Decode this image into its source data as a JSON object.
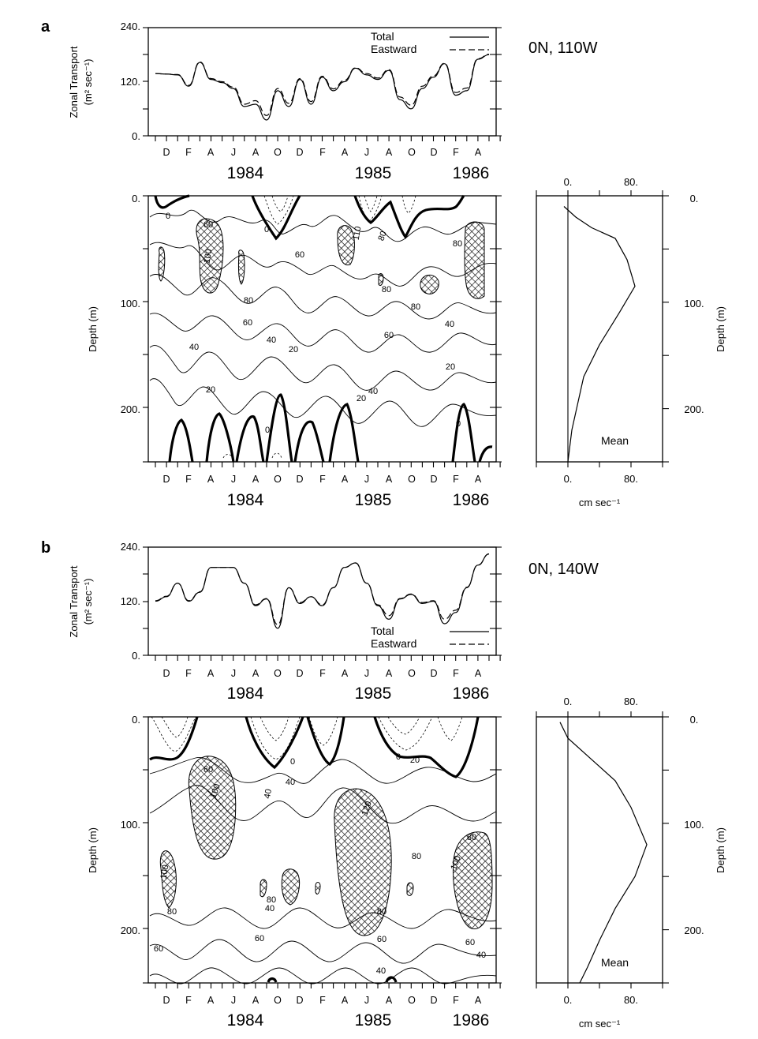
{
  "panels": [
    {
      "id": "a",
      "label": "a",
      "station": "0N, 110W",
      "transport": {
        "ylabel_line1": "Zonal Transport",
        "ylabel_line2": "(m² sec⁻¹)",
        "yticks": [
          "240.",
          "120.",
          "0."
        ],
        "ylim": [
          0,
          240
        ],
        "legend": {
          "position": "top-right",
          "total": "Total",
          "eastward": "Eastward"
        }
      },
      "section": {
        "ylabel": "Depth (m)",
        "yticks": [
          "0.",
          "100.",
          "200."
        ],
        "ylim": [
          0,
          250
        ],
        "contour_labels": [
          "0",
          "0",
          "0",
          "0",
          "20",
          "20",
          "20",
          "20",
          "40",
          "40",
          "40",
          "40",
          "60",
          "60",
          "60",
          "60",
          "80",
          "80",
          "80",
          "80",
          "100",
          "110",
          "80"
        ],
        "shading": "cross-hatched where speed exceeds 100 cm sec⁻¹; dotted contours are westward flow"
      },
      "mean": {
        "ylabel": "Depth (m)",
        "yticks": [
          "0.",
          "100.",
          "200."
        ],
        "xticks": [
          "0.",
          "80."
        ],
        "xlabel": "cm sec⁻¹",
        "label": "Mean"
      },
      "time_axis": {
        "months": [
          "D",
          "F",
          "A",
          "J",
          "A",
          "O",
          "D",
          "F",
          "A",
          "J",
          "A",
          "O",
          "D",
          "F",
          "A"
        ],
        "years": [
          "1984",
          "1985",
          "1986"
        ]
      }
    },
    {
      "id": "b",
      "label": "b",
      "station": "0N, 140W",
      "transport": {
        "ylabel_line1": "Zonal Transport",
        "ylabel_line2": "(m² sec⁻¹)",
        "yticks": [
          "240.",
          "120.",
          "0."
        ],
        "ylim": [
          0,
          240
        ],
        "legend": {
          "position": "bottom-right",
          "total": "Total",
          "eastward": "Eastward"
        }
      },
      "section": {
        "ylabel": "Depth (m)",
        "yticks": [
          "0.",
          "100.",
          "200."
        ],
        "ylim": [
          0,
          250
        ],
        "contour_labels": [
          "0",
          "0",
          "20",
          "40",
          "40",
          "40",
          "40",
          "60",
          "60",
          "60",
          "60",
          "60",
          "80",
          "80",
          "80",
          "80",
          "80",
          "100",
          "100",
          "100",
          "120",
          "40"
        ],
        "shading": "cross-hatched where speed exceeds 100 cm sec⁻¹; dotted contours are westward flow"
      },
      "mean": {
        "ylabel": "Depth (m)",
        "yticks": [
          "0.",
          "100.",
          "200."
        ],
        "xticks": [
          "0.",
          "80."
        ],
        "xlabel": "cm sec⁻¹",
        "label": "Mean"
      },
      "time_axis": {
        "months": [
          "D",
          "F",
          "A",
          "J",
          "A",
          "O",
          "D",
          "F",
          "A",
          "J",
          "A",
          "O",
          "D",
          "F",
          "A"
        ],
        "years": [
          "1984",
          "1985",
          "1986"
        ]
      }
    }
  ],
  "chart_data": [
    {
      "type": "line",
      "panel": "a",
      "title": "0N, 110W",
      "ylabel": "Zonal Transport (m² sec⁻¹)",
      "ylim": [
        0,
        240
      ],
      "xticks": [
        "D",
        "F",
        "A",
        "J",
        "A",
        "O",
        "D",
        "F",
        "A",
        "J",
        "A",
        "O",
        "D",
        "F",
        "A"
      ],
      "x": [
        "1983-11",
        "1983-12",
        "1984-01",
        "1984-02",
        "1984-03",
        "1984-04",
        "1984-05",
        "1984-06",
        "1984-07",
        "1984-08",
        "1984-09",
        "1984-10",
        "1984-11",
        "1984-12",
        "1985-01",
        "1985-02",
        "1985-03",
        "1985-04",
        "1985-05",
        "1985-06",
        "1985-07",
        "1985-08",
        "1985-09",
        "1985-10",
        "1985-11",
        "1985-12",
        "1986-01",
        "1986-02",
        "1986-03",
        "1986-04",
        "1986-05"
      ],
      "series": [
        {
          "name": "Total",
          "values": [
            138,
            137,
            135,
            110,
            163,
            125,
            118,
            105,
            65,
            70,
            35,
            100,
            65,
            125,
            70,
            130,
            100,
            120,
            150,
            135,
            125,
            145,
            80,
            60,
            105,
            130,
            160,
            90,
            100,
            170,
            180
          ]
        },
        {
          "name": "Eastward",
          "values": [
            138,
            137,
            136,
            112,
            164,
            127,
            120,
            108,
            70,
            78,
            45,
            105,
            72,
            127,
            76,
            132,
            104,
            123,
            151,
            138,
            128,
            147,
            86,
            68,
            110,
            133,
            161,
            96,
            106,
            171,
            181
          ]
        }
      ]
    },
    {
      "type": "line",
      "panel": "a",
      "title": "Mean",
      "xlabel": "cm sec⁻¹",
      "ylabel": "Depth (m)",
      "xlim": [
        -40,
        120
      ],
      "ylim": [
        250,
        0
      ],
      "x": [
        -5,
        10,
        30,
        60,
        75,
        85,
        65,
        40,
        20,
        5,
        0
      ],
      "y": [
        10,
        20,
        30,
        40,
        60,
        85,
        110,
        140,
        170,
        220,
        250
      ]
    },
    {
      "type": "line",
      "panel": "b",
      "title": "0N, 140W",
      "ylabel": "Zonal Transport (m² sec⁻¹)",
      "ylim": [
        0,
        240
      ],
      "xticks": [
        "D",
        "F",
        "A",
        "J",
        "A",
        "O",
        "D",
        "F",
        "A",
        "J",
        "A",
        "O",
        "D",
        "F",
        "A"
      ],
      "x": [
        "1983-11",
        "1983-12",
        "1984-01",
        "1984-02",
        "1984-03",
        "1984-04",
        "1984-05",
        "1984-06",
        "1984-07",
        "1984-08",
        "1984-09",
        "1984-10",
        "1984-11",
        "1984-12",
        "1985-01",
        "1985-02",
        "1985-03",
        "1985-04",
        "1985-05",
        "1985-06",
        "1985-07",
        "1985-08",
        "1985-09",
        "1985-10",
        "1985-11",
        "1985-12",
        "1986-01",
        "1986-02",
        "1986-03",
        "1986-04",
        "1986-05"
      ],
      "series": [
        {
          "name": "Total",
          "values": [
            120,
            130,
            160,
            120,
            140,
            195,
            195,
            195,
            160,
            110,
            125,
            60,
            150,
            115,
            130,
            110,
            150,
            195,
            205,
            160,
            110,
            80,
            125,
            135,
            115,
            120,
            70,
            95,
            150,
            200,
            225
          ]
        },
        {
          "name": "Eastward",
          "values": [
            121,
            131,
            160,
            121,
            141,
            195,
            195,
            195,
            160,
            112,
            126,
            68,
            150,
            117,
            130,
            112,
            150,
            195,
            205,
            160,
            112,
            88,
            126,
            136,
            117,
            121,
            80,
            100,
            151,
            200,
            225
          ]
        }
      ]
    },
    {
      "type": "line",
      "panel": "b",
      "title": "Mean",
      "xlabel": "cm sec⁻¹",
      "ylabel": "Depth (m)",
      "xlim": [
        -40,
        120
      ],
      "ylim": [
        250,
        0
      ],
      "x": [
        -10,
        0,
        30,
        60,
        80,
        100,
        85,
        60,
        40,
        25,
        15
      ],
      "y": [
        5,
        20,
        40,
        60,
        85,
        120,
        150,
        180,
        210,
        235,
        250
      ]
    }
  ]
}
